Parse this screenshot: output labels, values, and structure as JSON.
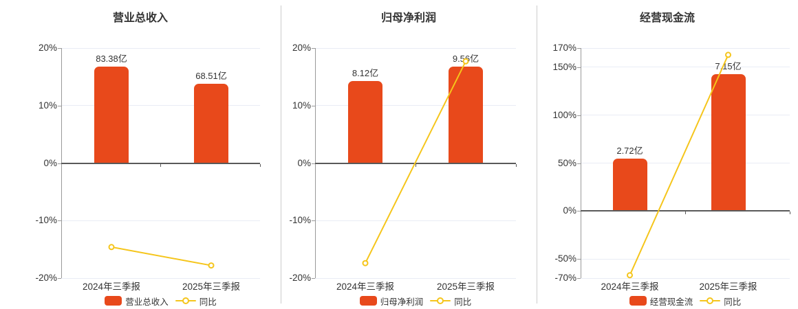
{
  "colors": {
    "bar": "#e8491b",
    "line": "#f5c51b",
    "zero_axis": "#595959",
    "axis_line": "#999999",
    "gridline": "#e9ecf5",
    "text": "#333333",
    "divider": "#cccccc",
    "marker_fill": "#ffffff",
    "background": "#ffffff"
  },
  "chart_data": [
    {
      "type": "bar",
      "title": "营业总收入",
      "categories": [
        "2024年三季报",
        "2025年三季报"
      ],
      "bars": {
        "name": "营业总收入",
        "unit": "亿",
        "values_yi": [
          83.38,
          68.51
        ],
        "labels": [
          "83.38亿",
          "68.51亿"
        ]
      },
      "line": {
        "name": "同比",
        "values_pct": [
          -14.6,
          -17.8
        ]
      },
      "y_axis": {
        "min": -20,
        "max": 20,
        "tick_values": [
          20,
          10,
          0,
          -10,
          -20
        ],
        "tick_labels": [
          "20%",
          "10%",
          "0%",
          "-10%",
          "-20%"
        ]
      },
      "legend": [
        {
          "kind": "bar",
          "label": "营业总收入"
        },
        {
          "kind": "line",
          "label": "同比"
        }
      ]
    },
    {
      "type": "bar",
      "title": "归母净利润",
      "categories": [
        "2024年三季报",
        "2025年三季报"
      ],
      "bars": {
        "name": "归母净利润",
        "unit": "亿",
        "values_yi": [
          8.12,
          9.56
        ],
        "labels": [
          "8.12亿",
          "9.56亿"
        ]
      },
      "line": {
        "name": "同比",
        "values_pct": [
          -17.4,
          17.7
        ]
      },
      "y_axis": {
        "min": -20,
        "max": 20,
        "tick_values": [
          20,
          10,
          0,
          -10,
          -20
        ],
        "tick_labels": [
          "20%",
          "10%",
          "0%",
          "-10%",
          "-20%"
        ]
      },
      "legend": [
        {
          "kind": "bar",
          "label": "归母净利润"
        },
        {
          "kind": "line",
          "label": "同比"
        }
      ]
    },
    {
      "type": "bar",
      "title": "经营现金流",
      "categories": [
        "2024年三季报",
        "2025年三季报"
      ],
      "bars": {
        "name": "经营现金流",
        "unit": "亿",
        "values_yi": [
          2.72,
          7.15
        ],
        "labels": [
          "2.72亿",
          "7.15亿"
        ]
      },
      "line": {
        "name": "同比",
        "values_pct": [
          -67.0,
          162.9
        ]
      },
      "y_axis": {
        "min": -70,
        "max": 170,
        "tick_values": [
          170,
          150,
          100,
          50,
          0,
          -50,
          -70
        ],
        "tick_labels": [
          "170%",
          "150%",
          "100%",
          "50%",
          "0%",
          "-50%",
          "-70%"
        ]
      },
      "legend": [
        {
          "kind": "bar",
          "label": "经营现金流"
        },
        {
          "kind": "line",
          "label": "同比"
        }
      ]
    }
  ]
}
